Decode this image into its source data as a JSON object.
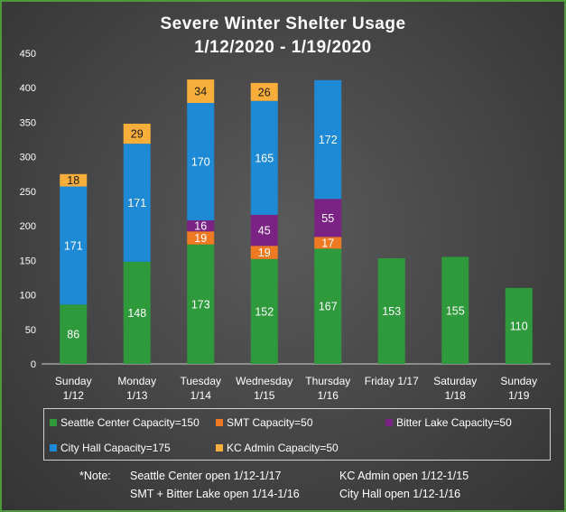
{
  "chart_data": {
    "type": "bar",
    "stacked": true,
    "title_line1": "Severe Winter Shelter Usage",
    "title_line2": "1/12/2020  - 1/19/2020",
    "categories": [
      [
        "Sunday",
        "1/12"
      ],
      [
        "Monday",
        "1/13"
      ],
      [
        "Tuesday",
        "1/14"
      ],
      [
        "Wednesday",
        "1/15"
      ],
      [
        "Thursday",
        "1/16"
      ],
      [
        "Friday 1/17"
      ],
      [
        "Saturday",
        "1/18"
      ],
      [
        "Sunday",
        "1/19"
      ]
    ],
    "ylim": [
      0,
      450
    ],
    "yticks": [
      0,
      50,
      100,
      150,
      200,
      250,
      300,
      350,
      400,
      450
    ],
    "series": [
      {
        "name": "Seattle Center Capacity=150",
        "color": "#2e9a3c",
        "values": [
          86,
          148,
          173,
          152,
          167,
          153,
          155,
          110
        ]
      },
      {
        "name": "SMT Capacity=50",
        "color": "#f07a23",
        "values": [
          0,
          0,
          19,
          19,
          17,
          0,
          0,
          0
        ]
      },
      {
        "name": "Bitter Lake Capacity=50",
        "color": "#7a2384",
        "values": [
          0,
          0,
          16,
          45,
          55,
          0,
          0,
          0
        ]
      },
      {
        "name": "City Hall Capacity=175",
        "color": "#1e8ad6",
        "values": [
          171,
          171,
          170,
          165,
          172,
          0,
          0,
          0
        ]
      },
      {
        "name": "KC Admin Capacity=50",
        "color": "#f7ae3a",
        "values": [
          18,
          29,
          34,
          26,
          0,
          0,
          0,
          0
        ]
      }
    ]
  },
  "legend": [
    "Seattle Center Capacity=150",
    "SMT Capacity=50",
    "Bitter Lake Capacity=50",
    "City Hall Capacity=175",
    "KC Admin Capacity=50"
  ],
  "note": {
    "label": "*Note:",
    "seattle_center": "Seattle Center open 1/12-1/17",
    "kc_admin": "KC Admin open 1/12-1/15",
    "smt_bitter_lake": "SMT + Bitter Lake open 1/14-1/16",
    "city_hall": "City Hall open 1/12-1/16"
  }
}
